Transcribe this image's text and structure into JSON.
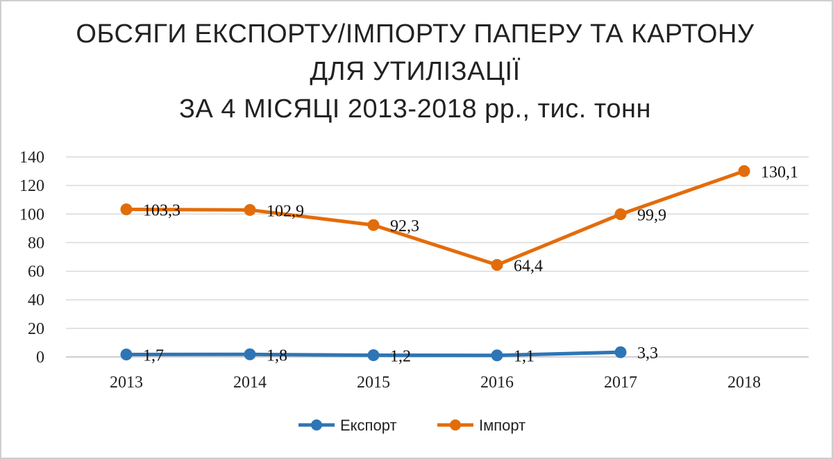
{
  "chart_data": {
    "type": "line",
    "title_lines": [
      "ОБСЯГИ ЕКСПОРТУ/ІМПОРТУ ПАПЕРУ ТА КАРТОНУ",
      "ДЛЯ УТИЛІЗАЦІЇ",
      "ЗА 4 МІСЯЦІ 2013-2018 рр., тис. тонн"
    ],
    "categories": [
      "2013",
      "2014",
      "2015",
      "2016",
      "2017",
      "2018"
    ],
    "ylim": [
      0,
      140
    ],
    "yticks": [
      0,
      20,
      40,
      60,
      80,
      100,
      120,
      140
    ],
    "grid": true,
    "legend_position": "bottom",
    "series": [
      {
        "name": "Експорт",
        "color": "#2E75B6",
        "values": [
          1.7,
          1.8,
          1.2,
          1.1,
          3.3,
          null
        ],
        "labels": [
          "1,7",
          "1,8",
          "1,2",
          "1,1",
          "3,3",
          null
        ]
      },
      {
        "name": "Імпорт",
        "color": "#E36C0A",
        "values": [
          103.3,
          102.9,
          92.3,
          64.4,
          99.9,
          130.1
        ],
        "labels": [
          "103,3",
          "102,9",
          "92,3",
          "64,4",
          "99,9",
          "130,1"
        ]
      }
    ]
  }
}
